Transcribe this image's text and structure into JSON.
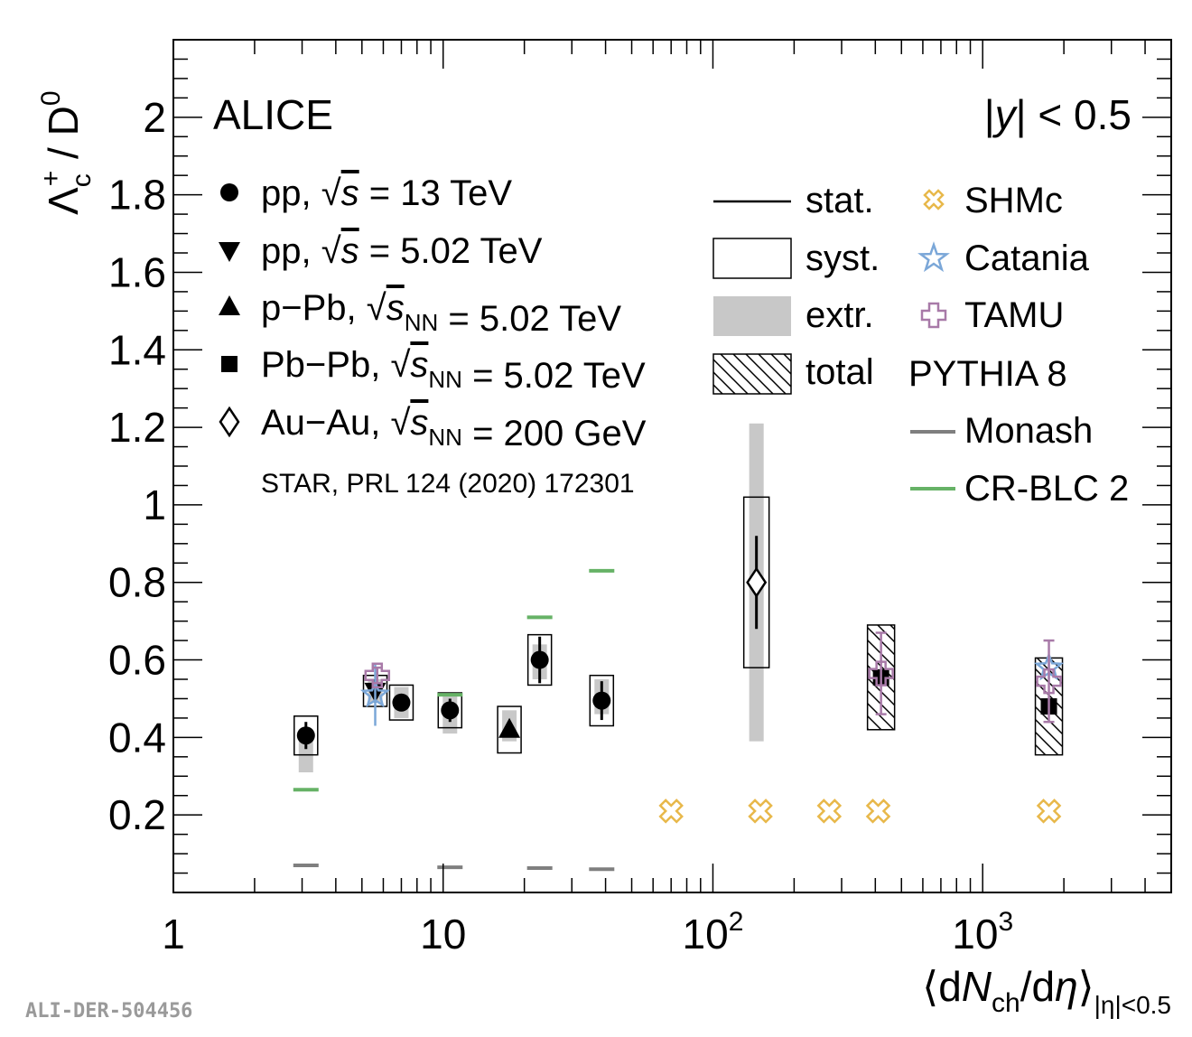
{
  "chart_data": {
    "type": "scatter",
    "experiment": "ALICE",
    "rapidity": "|y| < 0.5",
    "xlabel": "⟨dN_ch/dη⟩_|η|<0.5",
    "ylabel": "Λc+ / D0",
    "xscale": "log",
    "xlim": [
      1,
      5000
    ],
    "ylim": [
      0,
      2.2
    ],
    "x_ticks": [
      "1",
      "10",
      "10²",
      "10³"
    ],
    "y_ticks": [
      "0.2",
      "0.4",
      "0.6",
      "0.8",
      "1",
      "1.2",
      "1.4",
      "1.6",
      "1.8",
      "2"
    ],
    "series": [
      {
        "name": "pp, √s = 13 TeV",
        "marker": "circle",
        "points": [
          {
            "x": 3.1,
            "y": 0.405,
            "stat": 0.035,
            "syst": 0.05,
            "extr_low": 0.31,
            "extr_high": 0.4
          },
          {
            "x": 7.0,
            "y": 0.49,
            "stat": 0.02,
            "syst": 0.045,
            "extr_low": 0.45,
            "extr_high": 0.53
          },
          {
            "x": 10.6,
            "y": 0.47,
            "stat": 0.03,
            "syst": 0.045,
            "extr_low": 0.41,
            "extr_high": 0.51
          },
          {
            "x": 22.8,
            "y": 0.6,
            "stat": 0.06,
            "syst": 0.065,
            "extr_low": 0.55,
            "extr_high": 0.64
          },
          {
            "x": 38.7,
            "y": 0.495,
            "stat": 0.05,
            "syst": 0.065,
            "extr_low": 0.46,
            "extr_high": 0.55
          }
        ]
      },
      {
        "name": "pp, √s = 5.02 TeV",
        "marker": "triangle-down",
        "points": [
          {
            "x": 5.6,
            "y": 0.52,
            "stat": 0.03,
            "syst": 0.04,
            "extr_low": 0.49,
            "extr_high": 0.55
          }
        ]
      },
      {
        "name": "p−Pb, √sNN = 5.02 TeV",
        "marker": "triangle-up",
        "points": [
          {
            "x": 17.6,
            "y": 0.42,
            "stat": 0.02,
            "syst": 0.06,
            "extr_low": 0.39,
            "extr_high": 0.47
          }
        ]
      },
      {
        "name": "Pb−Pb, √sNN = 5.02 TeV",
        "marker": "square",
        "points": [
          {
            "x": 420,
            "y": 0.555,
            "stat": 0.02,
            "syst": 0.135
          },
          {
            "x": 1760,
            "y": 0.48,
            "stat": 0.015,
            "syst": 0.125
          }
        ]
      },
      {
        "name": "Au−Au, √sNN = 200 GeV",
        "marker": "diamond-open",
        "points": [
          {
            "x": 145,
            "y": 0.8,
            "stat": 0.12,
            "syst": 0.22,
            "extr_low": 0.39,
            "extr_high": 1.21
          }
        ]
      }
    ],
    "models": [
      {
        "name": "SHMc",
        "color": "#e8b84a",
        "marker": "open-cross",
        "points": [
          {
            "x": 70,
            "y": 0.21
          },
          {
            "x": 150,
            "y": 0.21
          },
          {
            "x": 270,
            "y": 0.21
          },
          {
            "x": 410,
            "y": 0.21
          },
          {
            "x": 1760,
            "y": 0.21
          }
        ]
      },
      {
        "name": "Catania",
        "color": "#7ba7d8",
        "marker": "open-star",
        "points": [
          {
            "x": 5.6,
            "y": 0.51,
            "err": 0.08
          },
          {
            "x": 1760,
            "y": 0.58,
            "err": 0.03
          }
        ]
      },
      {
        "name": "TAMU",
        "color": "#a87aa8",
        "marker": "open-plus",
        "points": [
          {
            "x": 5.7,
            "y": 0.56,
            "err": 0.02
          },
          {
            "x": 420,
            "y": 0.565,
            "err": 0.105
          },
          {
            "x": 1760,
            "y": 0.545,
            "err": 0.105
          }
        ]
      },
      {
        "name": "Monash",
        "group": "PYTHIA 8",
        "color": "#7f7f7f",
        "marker": "dash",
        "points": [
          {
            "x": 3.1,
            "y": 0.07
          },
          {
            "x": 10.6,
            "y": 0.065
          },
          {
            "x": 22.8,
            "y": 0.063
          },
          {
            "x": 38.7,
            "y": 0.06
          }
        ]
      },
      {
        "name": "CR-BLC 2",
        "group": "PYTHIA 8",
        "color": "#66b266",
        "marker": "dash",
        "points": [
          {
            "x": 3.1,
            "y": 0.265
          },
          {
            "x": 10.6,
            "y": 0.51
          },
          {
            "x": 22.8,
            "y": 0.71
          },
          {
            "x": 38.7,
            "y": 0.83
          }
        ]
      }
    ],
    "legend": {
      "data": [
        "pp, √s = 13 TeV",
        "pp, √s = 5.02 TeV",
        "p−Pb, √sNN = 5.02 TeV",
        "Pb−Pb, √sNN = 5.02 TeV",
        "Au−Au, √sNN = 200 GeV"
      ],
      "star_ref": "STAR, PRL 124 (2020) 172301",
      "uncert": [
        "stat.",
        "syst.",
        "extr.",
        "total"
      ],
      "models": [
        "SHMc",
        "Catania",
        "TAMU",
        "PYTHIA 8",
        "Monash",
        "CR-BLC 2"
      ]
    },
    "watermark": "ALI-DER-504456"
  }
}
